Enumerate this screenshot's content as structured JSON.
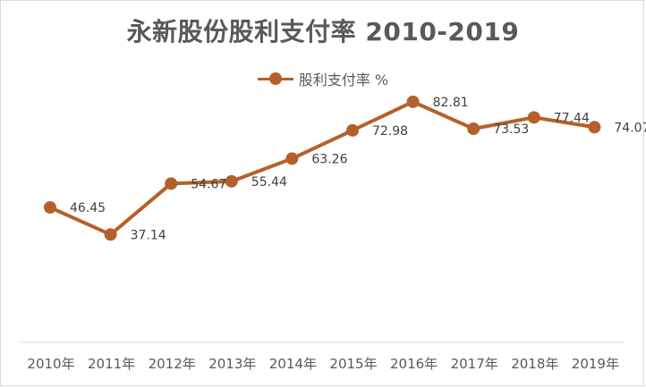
{
  "chart_data": {
    "type": "line",
    "title": "永新股份股利支付率 2010-2019",
    "categories": [
      "2010年",
      "2011年",
      "2012年",
      "2013年",
      "2014年",
      "2015年",
      "2016年",
      "2017年",
      "2018年",
      "2019年"
    ],
    "series": [
      {
        "name": "股利支付率 %",
        "values": [
          46.45,
          37.14,
          54.67,
          55.44,
          63.26,
          72.98,
          82.81,
          73.53,
          77.44,
          74.07
        ],
        "data_labels": [
          "46.45",
          "37.14",
          "54.67",
          "55.44",
          "63.26",
          "72.98",
          "82.81",
          "73.53",
          "77.44",
          "74.07"
        ]
      }
    ],
    "ylim": [
      0,
      100
    ],
    "grid": false,
    "legend_position": "top",
    "colors": {
      "series": "#b5602a",
      "axis": "#d9d9d9",
      "text": "#595959"
    }
  }
}
